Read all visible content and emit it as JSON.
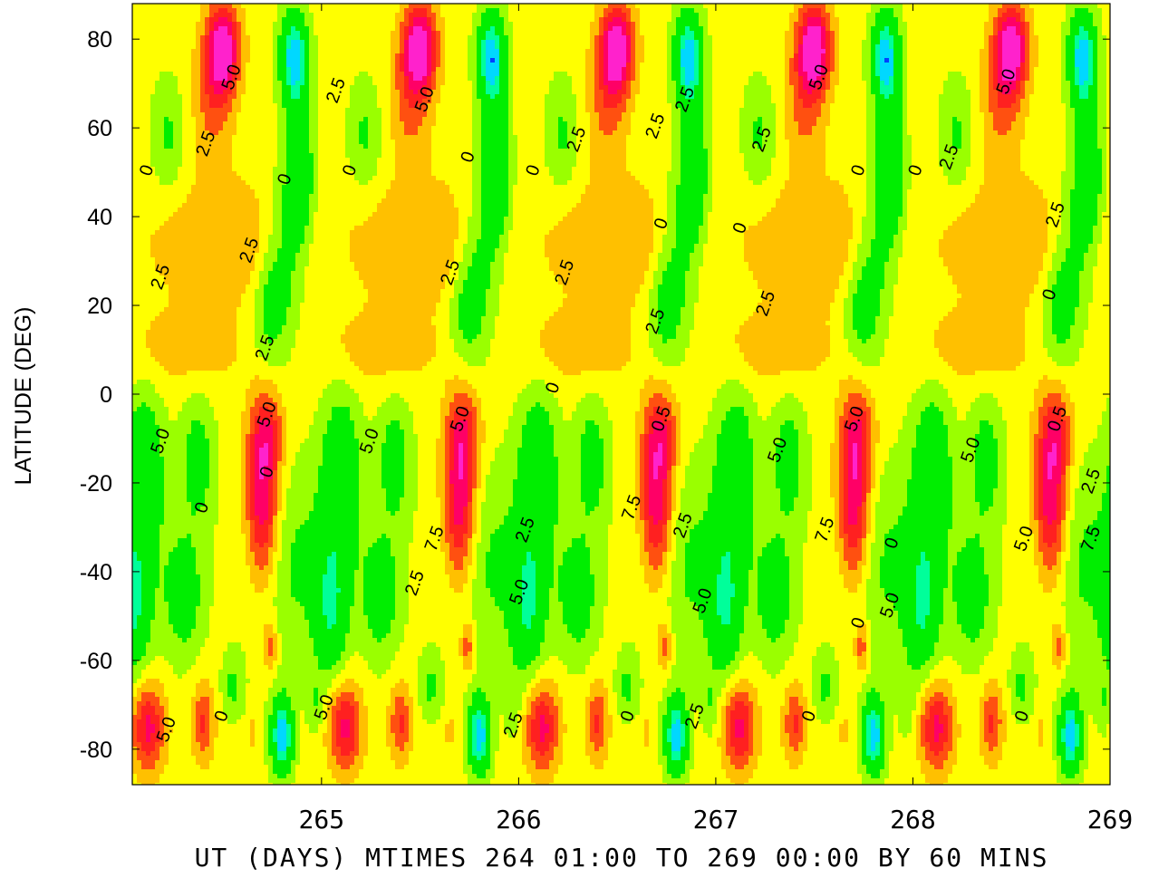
{
  "chart_data": {
    "type": "heatmap",
    "subtype": "filled-contour",
    "xlabel": "UT (DAYS) MTIMES 264 01:00 TO 269 00:00 BY   60 MINS",
    "ylabel": "LATITUDE (DEG)",
    "xlim": [
      264.04,
      269.0
    ],
    "ylim": [
      -88,
      88
    ],
    "x_ticks": [
      265,
      266,
      267,
      268,
      269
    ],
    "x_tick_labels": [
      "265",
      "266",
      "267",
      "268",
      "269"
    ],
    "y_ticks": [
      80,
      60,
      40,
      20,
      0,
      -20,
      -40,
      -60,
      -80
    ],
    "y_tick_labels": [
      "80",
      "60",
      "40",
      "20",
      "0",
      "-20",
      "-40",
      "-60",
      "-80"
    ],
    "contour_interval": 2.5,
    "positive_contours": "solid",
    "negative_contours": "dashed",
    "colors": {
      "magenta": "#ff22cc",
      "red": "#ff2020",
      "orange_red": "#ff5010",
      "orange": "#ffc000",
      "yellow": "#ffff00",
      "yellow_green": "#9aff00",
      "green": "#00ee00",
      "teal": "#00ff9a",
      "cyan": "#00d8ff",
      "blue": "#0040ff"
    },
    "color_levels": [
      -12.5,
      -10,
      -7.5,
      -5,
      -2.5,
      0,
      2.5,
      5,
      7.5,
      10,
      12.5
    ],
    "contour_labels": [
      {
        "x": 264.57,
        "y": 71,
        "text": "5.0"
      },
      {
        "x": 264.44,
        "y": 56,
        "text": "2.5"
      },
      {
        "x": 264.14,
        "y": 50,
        "text": "0"
      },
      {
        "x": 265.1,
        "y": 68,
        "text": "2.5"
      },
      {
        "x": 265.55,
        "y": 66,
        "text": "5.0"
      },
      {
        "x": 265.17,
        "y": 50,
        "text": "0"
      },
      {
        "x": 264.84,
        "y": 48,
        "text": "0"
      },
      {
        "x": 264.66,
        "y": 32,
        "text": "2.5"
      },
      {
        "x": 264.21,
        "y": 26,
        "text": "2.5"
      },
      {
        "x": 264.74,
        "y": 10,
        "text": "2.5"
      },
      {
        "x": 265.77,
        "y": 53,
        "text": "0"
      },
      {
        "x": 265.68,
        "y": 27,
        "text": "2.5"
      },
      {
        "x": 266.26,
        "y": 27,
        "text": "2.5"
      },
      {
        "x": 266.32,
        "y": 57,
        "text": "2.5"
      },
      {
        "x": 266.1,
        "y": 50,
        "text": "0"
      },
      {
        "x": 266.72,
        "y": 60,
        "text": "2.5"
      },
      {
        "x": 266.87,
        "y": 66,
        "text": "2.5"
      },
      {
        "x": 266.75,
        "y": 38,
        "text": "0"
      },
      {
        "x": 266.72,
        "y": 16,
        "text": "2.5"
      },
      {
        "x": 266.2,
        "y": 1,
        "text": "0"
      },
      {
        "x": 267.26,
        "y": 57,
        "text": "2.5"
      },
      {
        "x": 267.55,
        "y": 71,
        "text": "5.0"
      },
      {
        "x": 267.75,
        "y": 50,
        "text": "0"
      },
      {
        "x": 267.28,
        "y": 20,
        "text": "2.5"
      },
      {
        "x": 267.15,
        "y": 37,
        "text": "0"
      },
      {
        "x": 268.21,
        "y": 53,
        "text": "2.5"
      },
      {
        "x": 268.04,
        "y": 50,
        "text": "0"
      },
      {
        "x": 268.5,
        "y": 70,
        "text": "5.0"
      },
      {
        "x": 268.75,
        "y": 40,
        "text": "2.5"
      },
      {
        "x": 268.72,
        "y": 22,
        "text": "0"
      },
      {
        "x": 264.21,
        "y": -11,
        "text": "5.0"
      },
      {
        "x": 264.75,
        "y": -5,
        "text": "5.0"
      },
      {
        "x": 264.75,
        "y": -18,
        "text": "0"
      },
      {
        "x": 264.42,
        "y": -26,
        "text": "0"
      },
      {
        "x": 265.27,
        "y": -11,
        "text": "5.0"
      },
      {
        "x": 265.73,
        "y": -6,
        "text": "5.0"
      },
      {
        "x": 265.6,
        "y": -33,
        "text": "7.5"
      },
      {
        "x": 265.5,
        "y": -43,
        "text": "2.5"
      },
      {
        "x": 266.06,
        "y": -31,
        "text": "2.5"
      },
      {
        "x": 266.03,
        "y": -45,
        "text": "5.0"
      },
      {
        "x": 266.6,
        "y": -26,
        "text": "7.5"
      },
      {
        "x": 266.75,
        "y": -6,
        "text": "0.5"
      },
      {
        "x": 266.86,
        "y": -30,
        "text": "2.5"
      },
      {
        "x": 266.96,
        "y": -47,
        "text": "5.0"
      },
      {
        "x": 267.34,
        "y": -13,
        "text": "5.0"
      },
      {
        "x": 267.58,
        "y": -31,
        "text": "7.5"
      },
      {
        "x": 267.73,
        "y": -6,
        "text": "5.0"
      },
      {
        "x": 267.92,
        "y": -34,
        "text": "0"
      },
      {
        "x": 267.91,
        "y": -48,
        "text": "5.0"
      },
      {
        "x": 267.75,
        "y": -52,
        "text": "0"
      },
      {
        "x": 268.32,
        "y": -13,
        "text": "5.0"
      },
      {
        "x": 268.76,
        "y": -6,
        "text": "0.5"
      },
      {
        "x": 268.59,
        "y": -33,
        "text": "5.0"
      },
      {
        "x": 268.93,
        "y": -20,
        "text": "2.5"
      },
      {
        "x": 268.93,
        "y": -33,
        "text": "7.5"
      },
      {
        "x": 264.24,
        "y": -76,
        "text": "5.0"
      },
      {
        "x": 264.52,
        "y": -73,
        "text": "0"
      },
      {
        "x": 265.04,
        "y": -71,
        "text": "5.0"
      },
      {
        "x": 266.0,
        "y": -75,
        "text": "2.5"
      },
      {
        "x": 266.58,
        "y": -73,
        "text": "0"
      },
      {
        "x": 266.92,
        "y": -73,
        "text": "2.5"
      },
      {
        "x": 267.5,
        "y": -73,
        "text": "0"
      },
      {
        "x": 268.58,
        "y": -73,
        "text": "0"
      }
    ]
  }
}
